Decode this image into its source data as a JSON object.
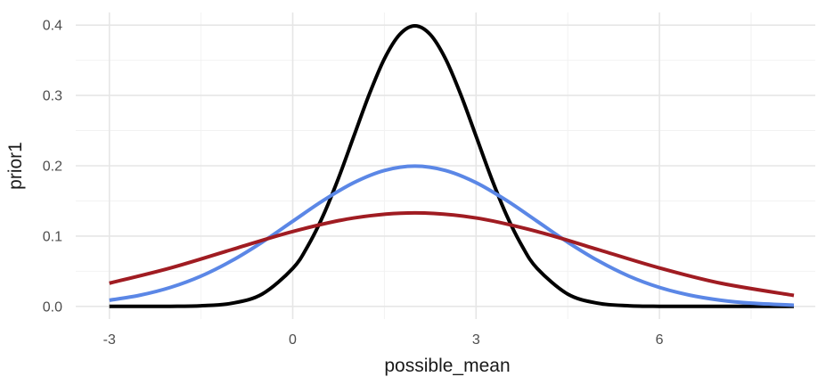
{
  "chart_data": {
    "type": "line",
    "xlabel": "possible_mean",
    "ylabel": "prior1",
    "xlim": [
      -3,
      8.2
    ],
    "ylim": [
      0,
      0.4
    ],
    "x_ticks": [
      -3,
      0,
      3,
      6
    ],
    "x_tick_labels": [
      "-3",
      "0",
      "3",
      "6"
    ],
    "y_ticks": [
      0,
      0.1,
      0.2,
      0.3,
      0.4
    ],
    "y_tick_labels": [
      "0.0",
      "0.1",
      "0.2",
      "0.3",
      "0.4"
    ],
    "grid": true,
    "legend": "none",
    "series": [
      {
        "color": "#000000",
        "x": [
          -3,
          -2.5,
          -2,
          -1.5,
          -1,
          -0.5,
          0,
          0.25,
          0.5,
          0.75,
          1,
          1.25,
          1.5,
          1.75,
          2,
          2.25,
          2.5,
          2.75,
          3,
          3.25,
          3.5,
          3.75,
          4,
          4.5,
          5,
          5.5,
          6,
          7,
          8.2
        ],
        "values": [
          0,
          0,
          0.0001,
          0.0009,
          0.0044,
          0.0175,
          0.054,
          0.0863,
          0.1295,
          0.1826,
          0.242,
          0.3011,
          0.3521,
          0.3867,
          0.399,
          0.3867,
          0.3521,
          0.3011,
          0.242,
          0.1826,
          0.1295,
          0.0863,
          0.054,
          0.0175,
          0.0044,
          0.0009,
          0.0001,
          0,
          0
        ]
      },
      {
        "color": "#5b87e6",
        "x": [
          -3,
          -2.5,
          -2,
          -1.5,
          -1,
          -0.5,
          0,
          0.5,
          1,
          1.5,
          2,
          2.5,
          3,
          3.5,
          4,
          4.5,
          5,
          5.5,
          6,
          6.5,
          7,
          7.5,
          8.2
        ],
        "values": [
          0.0088,
          0.0159,
          0.027,
          0.0431,
          0.0648,
          0.0913,
          0.121,
          0.1506,
          0.176,
          0.1933,
          0.1995,
          0.1933,
          0.176,
          0.1506,
          0.121,
          0.0913,
          0.0648,
          0.0431,
          0.027,
          0.0159,
          0.0088,
          0.0046,
          0.0017
        ]
      },
      {
        "color": "#a01c22",
        "x": [
          -3,
          -2,
          -1,
          0,
          1,
          2,
          3,
          4,
          5,
          6,
          7,
          8.2
        ],
        "values": [
          0.033,
          0.0547,
          0.0807,
          0.1065,
          0.1258,
          0.133,
          0.1258,
          0.1065,
          0.0807,
          0.0547,
          0.033,
          0.0156
        ]
      }
    ]
  }
}
